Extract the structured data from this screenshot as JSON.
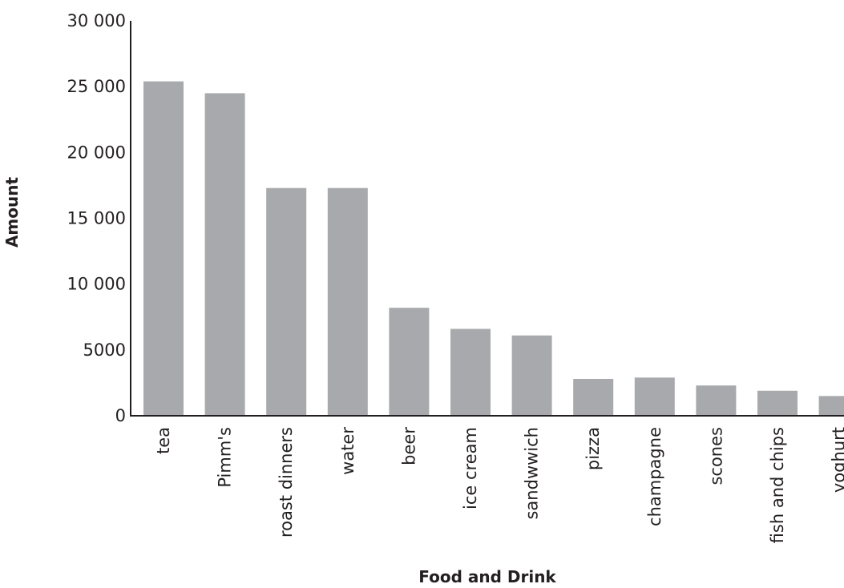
{
  "chart_data": {
    "type": "bar",
    "title": "",
    "xlabel": "Food and Drink",
    "ylabel": "Amount",
    "ylim": [
      0,
      30000
    ],
    "yticks": [
      0,
      5000,
      10000,
      15000,
      20000,
      25000,
      30000
    ],
    "ytick_labels": [
      "0",
      "5000",
      "10 000",
      "15 000",
      "20 000",
      "25 000",
      "30 000"
    ],
    "grid": false,
    "legend": "none",
    "bar_color": "#a7a9ac",
    "categories": [
      "tea",
      "Pimm's",
      "roast dinners",
      "water",
      "beer",
      "ice cream",
      "sandwwich",
      "pizza",
      "champagne",
      "scones",
      "fish and chips",
      "yoghurt"
    ],
    "values": [
      25400,
      24500,
      17300,
      17300,
      8200,
      6600,
      6100,
      2800,
      2900,
      2300,
      1900,
      1500
    ]
  }
}
